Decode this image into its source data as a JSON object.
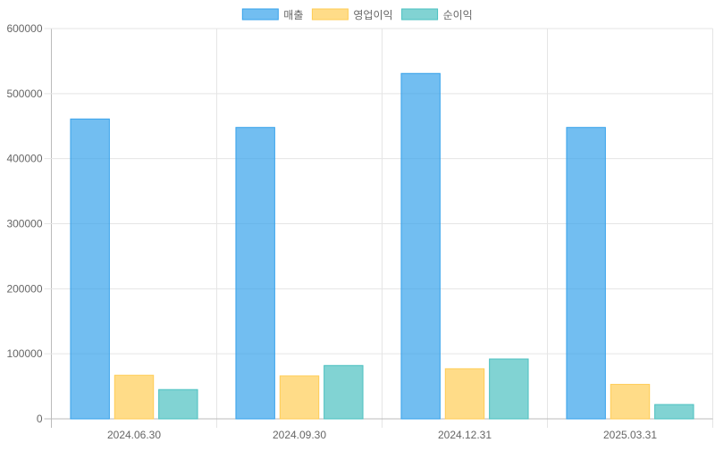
{
  "chart_data": {
    "type": "bar",
    "categories": [
      "2024.06.30",
      "2024.09.30",
      "2024.12.31",
      "2025.03.31"
    ],
    "series": [
      {
        "name": "매출",
        "values": [
          461000,
          448000,
          531000,
          448000
        ],
        "fill": "#36A2EB",
        "stroke": "#36A2EB"
      },
      {
        "name": "영업이익",
        "values": [
          67000,
          66000,
          77000,
          53000
        ],
        "fill": "#FFCD56",
        "stroke": "#FFCD56"
      },
      {
        "name": "순이익",
        "values": [
          45000,
          82000,
          92000,
          22000
        ],
        "fill": "#4BC0C0",
        "stroke": "#4BC0C0"
      }
    ],
    "ylim": [
      0,
      600000
    ],
    "yticks": [
      "0",
      "100000",
      "200000",
      "300000",
      "400000",
      "500000",
      "600000"
    ],
    "grid": true,
    "legend_position": "top-center"
  }
}
